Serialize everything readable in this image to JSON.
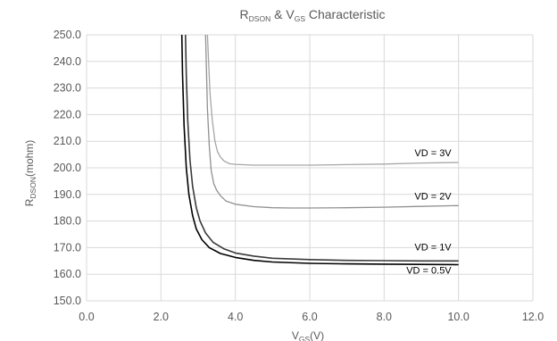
{
  "chart_data": {
    "type": "line",
    "title": {
      "prefix": "R",
      "prefix_sub": "DSON",
      "middle": " & V",
      "middle_sub": "GS",
      "suffix": " Characteristic"
    },
    "xlabel": {
      "main": "V",
      "sub": "GS",
      "unit": "(V)"
    },
    "ylabel": {
      "main": "R",
      "sub": "DSON",
      "unit": "(mohm)"
    },
    "xlim": [
      0,
      12
    ],
    "ylim": [
      150,
      250
    ],
    "x_ticks": [
      "0.0",
      "2.0",
      "4.0",
      "6.0",
      "8.0",
      "10.0",
      "12.0"
    ],
    "y_ticks": [
      "150.0",
      "160.0",
      "170.0",
      "180.0",
      "190.0",
      "200.0",
      "210.0",
      "220.0",
      "230.0",
      "240.0",
      "250.0"
    ],
    "grid": true,
    "series": [
      {
        "label": "VD = 3V",
        "color": "#a6a6a6",
        "x": [
          3.25,
          3.28,
          3.32,
          3.38,
          3.45,
          3.52,
          3.6,
          3.7,
          3.85,
          4.0,
          4.5,
          5.0,
          6.0,
          7.0,
          8.0,
          9.0,
          10.0
        ],
        "y": [
          250,
          240,
          228,
          218,
          210,
          206,
          204,
          202.5,
          201.5,
          201.3,
          201,
          201,
          201,
          201.2,
          201.4,
          201.8,
          202
        ]
      },
      {
        "label": "VD = 2V",
        "color": "#909090",
        "x": [
          3.2,
          3.22,
          3.25,
          3.3,
          3.35,
          3.42,
          3.5,
          3.6,
          3.75,
          4.0,
          4.5,
          5.0,
          5.5,
          6.0,
          7.0,
          8.0,
          9.0,
          10.0
        ],
        "y": [
          250,
          238,
          222,
          208,
          199,
          194,
          191.5,
          189.5,
          187.5,
          186.3,
          185.4,
          185,
          184.9,
          184.9,
          185,
          185.2,
          185.5,
          185.8
        ]
      },
      {
        "label": "VD = 1V",
        "color": "#3a3a3a",
        "x": [
          2.66,
          2.68,
          2.72,
          2.78,
          2.85,
          2.95,
          3.05,
          3.2,
          3.4,
          3.7,
          4.0,
          4.5,
          5.0,
          6.0,
          7.0,
          8.0,
          9.0,
          10.0
        ],
        "y": [
          250,
          235,
          218,
          203,
          193,
          185,
          180,
          175.5,
          172,
          169.5,
          168,
          166.8,
          166,
          165.5,
          165.2,
          165.1,
          165,
          165
        ]
      },
      {
        "label": "VD = 0.5V",
        "color": "#000000",
        "x": [
          2.56,
          2.58,
          2.62,
          2.68,
          2.75,
          2.85,
          2.95,
          3.1,
          3.3,
          3.6,
          4.0,
          4.5,
          5.0,
          6.0,
          7.0,
          8.0,
          9.0,
          10.0
        ],
        "y": [
          250,
          235,
          216,
          200,
          190,
          182,
          177,
          173,
          170,
          167.8,
          166.3,
          165.2,
          164.6,
          164.1,
          163.9,
          163.8,
          163.7,
          163.6
        ]
      }
    ],
    "labels_position": "right-of-curves"
  }
}
